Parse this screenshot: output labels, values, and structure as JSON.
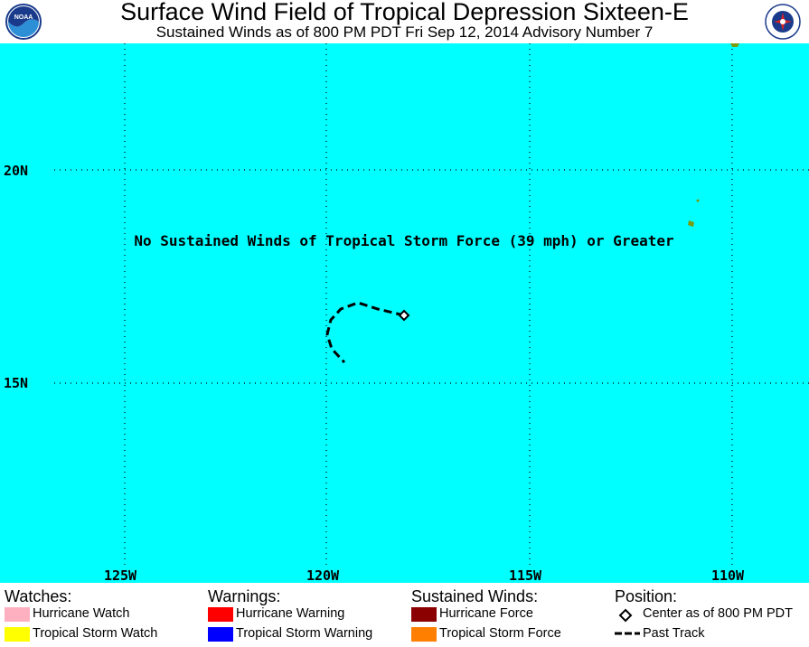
{
  "header": {
    "title": "Surface Wind Field of Tropical Depression Sixteen-E",
    "subtitle": "Sustained Winds as of 800 PM PDT Fri Sep 12, 2014    Advisory Number 7",
    "left_logo": "NOAA",
    "right_logo": "NATIONAL WEATHER SERVICE"
  },
  "map": {
    "message": "No Sustained Winds of Tropical Storm Force (39 mph) or Greater",
    "lat_labels": [
      "20N",
      "15N"
    ],
    "lon_labels": [
      "125W",
      "120W",
      "115W",
      "110W"
    ],
    "colors": {
      "ocean": "#00ffff",
      "land": "#7a9a10",
      "grid": "#000000"
    }
  },
  "legend": {
    "watches": {
      "heading": "Watches:",
      "items": [
        {
          "label": "Hurricane Watch",
          "color": "#ffb0c0"
        },
        {
          "label": "Tropical Storm Watch",
          "color": "#ffff00"
        }
      ]
    },
    "warnings": {
      "heading": "Warnings:",
      "items": [
        {
          "label": "Hurricane Warning",
          "color": "#ff0000"
        },
        {
          "label": "Tropical Storm Warning",
          "color": "#0000ff"
        }
      ]
    },
    "winds": {
      "heading": "Sustained Winds:",
      "items": [
        {
          "label": "Hurricane Force",
          "color": "#8b0000"
        },
        {
          "label": "Tropical Storm Force",
          "color": "#ff8000"
        }
      ]
    },
    "position": {
      "heading": "Position:",
      "items": [
        {
          "label": "Center as of 800 PM PDT",
          "icon": "diamond-icon"
        },
        {
          "label": "Past Track",
          "icon": "dashed-line-icon"
        }
      ]
    }
  }
}
